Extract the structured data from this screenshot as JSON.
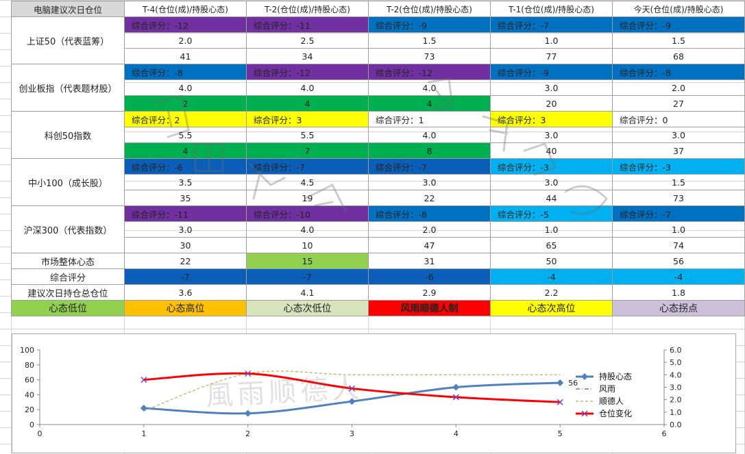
{
  "sheet": {
    "corner_label": "电脑建议次日仓位",
    "columns": [
      "T-4(仓位(成)/持股心态)",
      "T-2(仓位(成)/持股心态)",
      "T-2(仓位(成)/持股心态)",
      "T-1(仓位(成)/持股心态)",
      "今天(仓位(成)/持股心态)"
    ],
    "score_prefix": "综合评分：",
    "groups": [
      {
        "name": "上证50（代表蓝筹）",
        "scores": [
          "-12",
          "-11",
          "-9",
          "-7",
          "-9"
        ],
        "score_colors": [
          "#7030a0",
          "#7030a0",
          "#0070c0",
          "#0070c0",
          "#0070c0"
        ],
        "positions": [
          "2.0",
          "2.5",
          "1.5",
          "1.0",
          "1.5"
        ],
        "mood": [
          "41",
          "34",
          "73",
          "77",
          "68"
        ],
        "mood_colors": [
          "",
          "",
          "",
          "",
          ""
        ]
      },
      {
        "name": "创业板指（代表题材股）",
        "scores": [
          "-8",
          "-12",
          "-12",
          "-9",
          "-8"
        ],
        "score_colors": [
          "#0070c0",
          "#7030a0",
          "#7030a0",
          "#0070c0",
          "#0070c0"
        ],
        "positions": [
          "4.0",
          "4.0",
          "4.0",
          "3.0",
          "2.0"
        ],
        "mood": [
          "2",
          "4",
          "4",
          "20",
          "27"
        ],
        "mood_colors": [
          "#00b050",
          "#00b050",
          "#00b050",
          "",
          ""
        ]
      },
      {
        "name": "科创50指数",
        "scores": [
          "2",
          "3",
          "1",
          "3",
          "0"
        ],
        "score_colors": [
          "#ffff00",
          "#ffff00",
          "",
          "#ffff00",
          ""
        ],
        "positions": [
          "5.5",
          "5.5",
          "4.0",
          "3.0",
          "3.0"
        ],
        "mood": [
          "4",
          "7",
          "8",
          "40",
          "37"
        ],
        "mood_colors": [
          "#00b050",
          "#00b050",
          "#00b050",
          "",
          ""
        ]
      },
      {
        "name": "中小100（成长股）",
        "scores": [
          "-6",
          "-7",
          "-7",
          "-3",
          "-3"
        ],
        "score_colors": [
          "#0b5fb8",
          "#0b5fb8",
          "#0b5fb8",
          "#00b0f0",
          "#00b0f0"
        ],
        "positions": [
          "3.5",
          "4.5",
          "3.0",
          "3.0",
          "1.5"
        ],
        "mood": [
          "35",
          "19",
          "22",
          "44",
          "73"
        ],
        "mood_colors": [
          "",
          "",
          "",
          "",
          ""
        ]
      },
      {
        "name": "沪深300（代表指数）",
        "scores": [
          "-11",
          "-10",
          "-8",
          "-5",
          "-7"
        ],
        "score_colors": [
          "#7030a0",
          "#7030a0",
          "#0070c0",
          "#00b0f0",
          "#0070c0"
        ],
        "positions": [
          "3.0",
          "4.0",
          "2.0",
          "1.0",
          "1.0"
        ],
        "mood": [
          "30",
          "10",
          "47",
          "65",
          "74"
        ],
        "mood_colors": [
          "",
          "",
          "",
          "",
          ""
        ]
      }
    ],
    "summary_rows": [
      {
        "label": "市场整体心态",
        "values": [
          "22",
          "15",
          "31",
          "50",
          "56"
        ],
        "colors": [
          "",
          "#92d050",
          "",
          "",
          ""
        ]
      },
      {
        "label": "综合评分",
        "values": [
          "-7",
          "-7",
          "-6",
          "-4",
          "-4"
        ],
        "colors": [
          "#0b5fb8",
          "#0b5fb8",
          "#0b5fb8",
          "#00b0f0",
          "#00b0f0"
        ]
      },
      {
        "label": "建议次日持仓总仓位",
        "values": [
          "3.6",
          "4.1",
          "2.9",
          "2.2",
          "1.8"
        ],
        "colors": [
          "",
          "",
          "",
          "",
          ""
        ]
      }
    ],
    "legend_row": [
      {
        "text": "心态低位",
        "color": "#92d050"
      },
      {
        "text": "心态高位",
        "color": "#ffc000"
      },
      {
        "text": "心态次低位",
        "color": "#d8e4bc"
      },
      {
        "text": "风雨顺德人制",
        "color": "#ff0000"
      },
      {
        "text": "心态次高位",
        "color": "#ffff00"
      },
      {
        "text": "心态拐点",
        "color": "#ccc0da"
      }
    ]
  },
  "watermark": {
    "text": "風雨顺德人"
  },
  "chart_data": {
    "type": "line",
    "x_ticks": [
      "0",
      "1",
      "2",
      "3",
      "4",
      "5",
      "6"
    ],
    "y_left_ticks": [
      "0",
      "20",
      "40",
      "60",
      "80",
      "100"
    ],
    "y_right_ticks": [
      "0.0",
      "1.0",
      "2.0",
      "3.0",
      "4.0",
      "5.0",
      "6.0"
    ],
    "xlim": [
      0,
      6
    ],
    "ylim_left": [
      0,
      100
    ],
    "ylim_right": [
      0,
      6
    ],
    "series": [
      {
        "name": "持股心态",
        "axis": "left",
        "x": [
          1,
          2,
          3,
          4,
          5
        ],
        "y": [
          22,
          15,
          31,
          50,
          56
        ],
        "color": "#4f81bd",
        "marker": "diamond",
        "last_label": "56"
      },
      {
        "name": "风雨",
        "axis": "right",
        "x": [],
        "y": [],
        "color": "#7f3fbf",
        "style": "dash-dot"
      },
      {
        "name": "顺德人",
        "axis": "right",
        "x": [
          1,
          2,
          3,
          4,
          5
        ],
        "y": [
          1.1,
          4.1,
          4.0,
          4.0,
          4.0
        ],
        "color": "#9bbb59",
        "style": "dash"
      },
      {
        "name": "仓位变化",
        "axis": "right",
        "x": [
          1,
          2,
          3,
          4,
          5
        ],
        "y": [
          3.6,
          4.1,
          2.9,
          2.2,
          1.8
        ],
        "color": "#ff0000",
        "marker": "x"
      }
    ]
  }
}
